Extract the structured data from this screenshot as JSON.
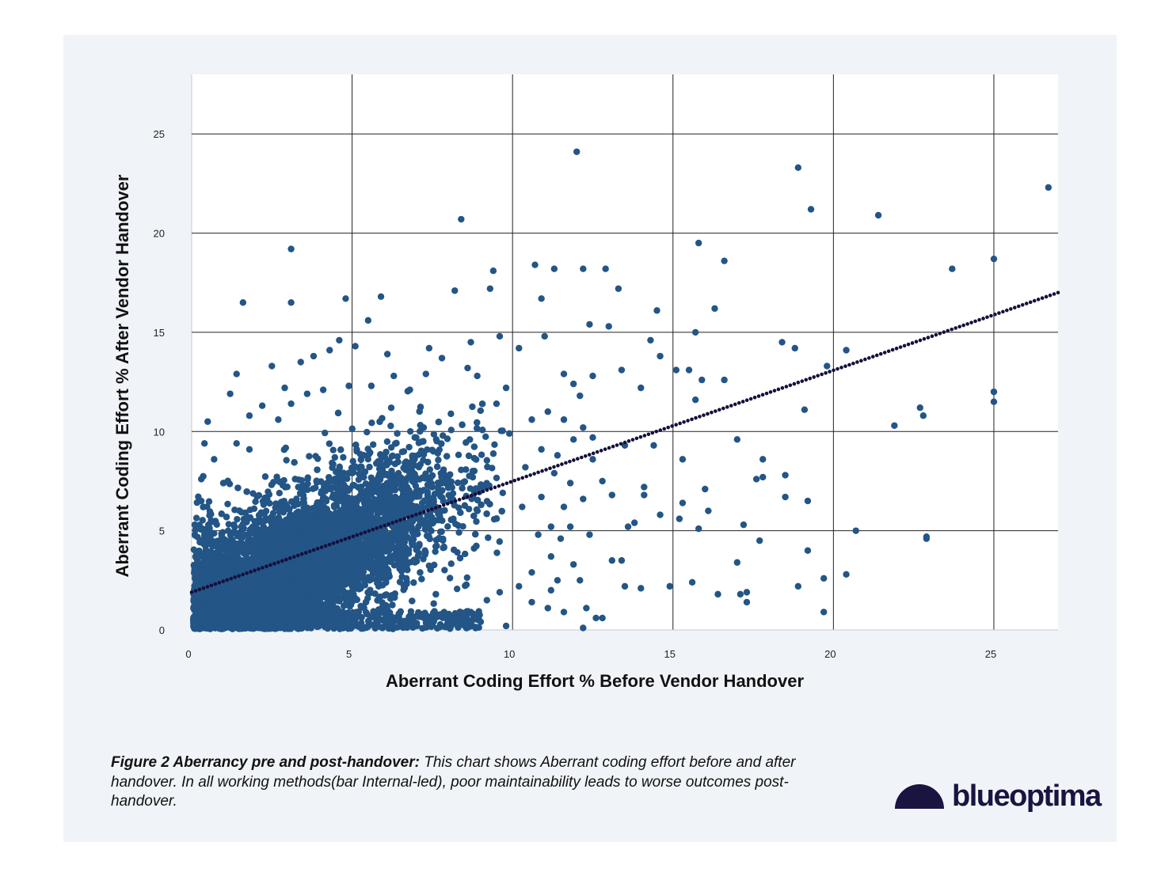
{
  "caption": {
    "title": "Figure 2 Aberrancy pre and post-handover:",
    "text": " This chart shows Aberrant coding effort before and after handover. In all working methods(bar Internal-led), poor maintainability leads to worse outcomes post-handover."
  },
  "logo": {
    "blue": "blue",
    "optima": "optima"
  },
  "colors": {
    "panel": "#f0f4f8",
    "point": "#235586",
    "trend": "#140f3c",
    "grid": "#222222",
    "axis": "#c8c8c8",
    "logo": "#1a1440"
  },
  "chart_data": {
    "type": "scatter",
    "title": "",
    "xlabel": "Aberrant Coding Effort % Before Vendor Handover",
    "ylabel": "Aberrant Coding Effort % After Vendor Handover",
    "xlim": [
      0,
      27
    ],
    "ylim": [
      0,
      28
    ],
    "xticks": [
      "0",
      "5",
      "10",
      "15",
      "20",
      "25"
    ],
    "yticks": [
      "0",
      "5",
      "10",
      "15",
      "20",
      "25"
    ],
    "grid": true,
    "trendline": {
      "type": "linear",
      "x": [
        0,
        27
      ],
      "y": [
        1.9,
        17
      ]
    },
    "dense_cluster": {
      "description_free": true,
      "x_range": [
        0,
        9.5
      ],
      "y_range": [
        0,
        13
      ],
      "center": [
        4,
        4
      ]
    },
    "points": [
      [
        12,
        24.1
      ],
      [
        8.4,
        20.7
      ],
      [
        3.1,
        19.2
      ],
      [
        18.9,
        23.3
      ],
      [
        19.3,
        21.2
      ],
      [
        21.4,
        20.9
      ],
      [
        26.7,
        22.3
      ],
      [
        15.8,
        19.5
      ],
      [
        16.6,
        18.6
      ],
      [
        23.7,
        18.2
      ],
      [
        25,
        18.7
      ],
      [
        11.3,
        18.2
      ],
      [
        12.2,
        18.2
      ],
      [
        10.7,
        18.4
      ],
      [
        12.9,
        18.2
      ],
      [
        9.4,
        18.1
      ],
      [
        13.3,
        17.2
      ],
      [
        8.2,
        17.1
      ],
      [
        9.3,
        17.2
      ],
      [
        10.9,
        16.7
      ],
      [
        16.3,
        16.2
      ],
      [
        14.5,
        16.1
      ],
      [
        1.6,
        16.5
      ],
      [
        3.1,
        16.5
      ],
      [
        4.8,
        16.7
      ],
      [
        5.9,
        16.8
      ],
      [
        15.7,
        15
      ],
      [
        13,
        15.3
      ],
      [
        12.4,
        15.4
      ],
      [
        14.3,
        14.6
      ],
      [
        18.4,
        14.5
      ],
      [
        18.8,
        14.2
      ],
      [
        20.4,
        14.1
      ],
      [
        19.8,
        13.3
      ],
      [
        14.6,
        13.8
      ],
      [
        15.1,
        13.1
      ],
      [
        15.5,
        13.1
      ],
      [
        15.9,
        12.6
      ],
      [
        16.6,
        12.6
      ],
      [
        13.4,
        13.1
      ],
      [
        14,
        12.2
      ],
      [
        15.7,
        11.6
      ],
      [
        19.1,
        11.1
      ],
      [
        22.7,
        11.2
      ],
      [
        22.8,
        10.8
      ],
      [
        21.9,
        10.3
      ],
      [
        25,
        12
      ],
      [
        25,
        11.5
      ],
      [
        17,
        9.6
      ],
      [
        13.5,
        9.3
      ],
      [
        14.4,
        9.3
      ],
      [
        15.3,
        8.6
      ],
      [
        17.8,
        8.6
      ],
      [
        17.8,
        7.7
      ],
      [
        17.6,
        7.6
      ],
      [
        18.5,
        7.8
      ],
      [
        16,
        7.1
      ],
      [
        14.1,
        7.2
      ],
      [
        14.1,
        6.8
      ],
      [
        15.3,
        6.4
      ],
      [
        16.1,
        6
      ],
      [
        18.5,
        6.7
      ],
      [
        19.2,
        6.5
      ],
      [
        17.2,
        5.3
      ],
      [
        15.8,
        5.1
      ],
      [
        15.2,
        5.6
      ],
      [
        14.6,
        5.8
      ],
      [
        20.7,
        5
      ],
      [
        22.9,
        4.7
      ],
      [
        22.9,
        4.6
      ],
      [
        17.7,
        4.5
      ],
      [
        19.2,
        4
      ],
      [
        13.6,
        5.2
      ],
      [
        13.8,
        5.4
      ],
      [
        13.1,
        6.8
      ],
      [
        12.8,
        7.5
      ],
      [
        17,
        3.4
      ],
      [
        14.9,
        2.2
      ],
      [
        15.6,
        2.4
      ],
      [
        16.4,
        1.8
      ],
      [
        17.1,
        1.8
      ],
      [
        17.3,
        1.9
      ],
      [
        17.3,
        1.4
      ],
      [
        18.9,
        2.2
      ],
      [
        19.7,
        2.6
      ],
      [
        20.4,
        2.8
      ],
      [
        19.7,
        0.9
      ],
      [
        13.5,
        2.2
      ],
      [
        14,
        2.1
      ],
      [
        13.1,
        3.5
      ],
      [
        13.4,
        3.5
      ],
      [
        12.6,
        0.6
      ],
      [
        12.8,
        0.6
      ],
      [
        12.2,
        0.1
      ],
      [
        12.3,
        1.1
      ],
      [
        11.6,
        0.9
      ],
      [
        11.1,
        1.1
      ],
      [
        9.8,
        0.2
      ],
      [
        2.5,
        13.3
      ],
      [
        3.4,
        13.5
      ],
      [
        3.8,
        13.8
      ],
      [
        4.3,
        14.1
      ],
      [
        4.6,
        14.6
      ],
      [
        5.1,
        14.3
      ],
      [
        5.5,
        15.6
      ],
      [
        6.1,
        13.9
      ],
      [
        7.4,
        14.2
      ],
      [
        7.8,
        13.7
      ],
      [
        8.7,
        14.5
      ],
      [
        9.6,
        14.8
      ],
      [
        10.2,
        14.2
      ],
      [
        11,
        14.8
      ],
      [
        0.5,
        10.5
      ],
      [
        0.4,
        9.4
      ],
      [
        0.7,
        8.6
      ],
      [
        1.2,
        11.9
      ],
      [
        1.4,
        12.9
      ],
      [
        2.2,
        11.3
      ],
      [
        1.8,
        10.8
      ],
      [
        0.3,
        7.6
      ],
      [
        0.3,
        6.5
      ],
      [
        0.1,
        4.8
      ],
      [
        11.6,
        12.9
      ],
      [
        11.9,
        12.4
      ],
      [
        12.5,
        12.8
      ],
      [
        12.1,
        11.8
      ],
      [
        11.6,
        10.6
      ],
      [
        12.2,
        10.2
      ],
      [
        11.9,
        9.6
      ],
      [
        12.5,
        9.7
      ],
      [
        10.6,
        10.6
      ],
      [
        11.1,
        11
      ],
      [
        10.9,
        9.1
      ],
      [
        11.4,
        8.8
      ],
      [
        12.5,
        8.6
      ],
      [
        11.3,
        7.9
      ],
      [
        11.8,
        7.4
      ],
      [
        12.2,
        6.6
      ],
      [
        11.6,
        6.2
      ],
      [
        11.2,
        5.2
      ],
      [
        11.8,
        5.2
      ],
      [
        12.4,
        4.8
      ],
      [
        11.5,
        4.6
      ],
      [
        10.8,
        4.8
      ],
      [
        11.2,
        3.7
      ],
      [
        11.9,
        3.3
      ],
      [
        11.4,
        2.5
      ],
      [
        12.1,
        2.5
      ],
      [
        10.6,
        2.9
      ],
      [
        10.2,
        2.2
      ],
      [
        10.6,
        1.4
      ],
      [
        11.2,
        2
      ],
      [
        9.2,
        1.5
      ],
      [
        8.7,
        0.9
      ],
      [
        9.6,
        1.9
      ],
      [
        10.3,
        6.2
      ],
      [
        10.9,
        6.7
      ],
      [
        10.4,
        8.2
      ],
      [
        9.9,
        9.9
      ],
      [
        9.5,
        11.4
      ],
      [
        9.8,
        12.2
      ],
      [
        8.9,
        12.8
      ],
      [
        8.6,
        13.2
      ],
      [
        7.3,
        12.9
      ],
      [
        6.8,
        12.1
      ],
      [
        6.3,
        12.8
      ],
      [
        5.6,
        12.3
      ],
      [
        4.9,
        12.3
      ],
      [
        4.1,
        12.1
      ],
      [
        3.6,
        11.9
      ],
      [
        3.1,
        11.4
      ],
      [
        2.7,
        10.6
      ],
      [
        2.9,
        12.2
      ],
      [
        1.4,
        9.4
      ],
      [
        1.8,
        9.1
      ]
    ]
  }
}
